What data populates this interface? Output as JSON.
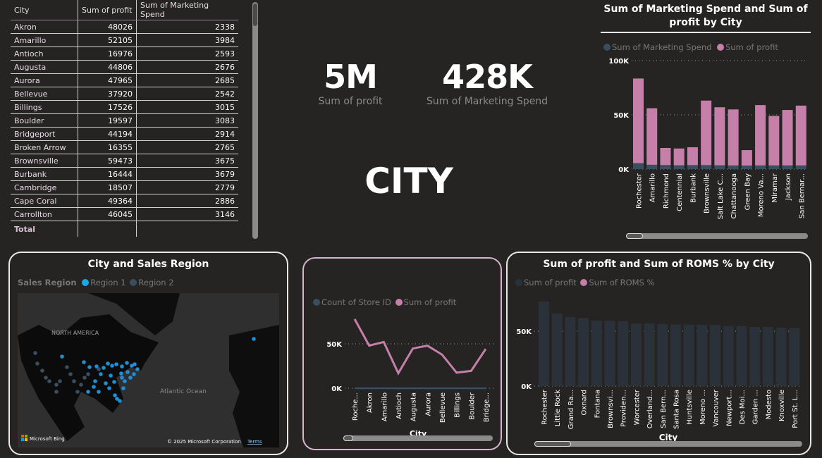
{
  "table": {
    "headers": [
      "City",
      "Sum of profit",
      "Sum of Marketing Spend"
    ],
    "rows": [
      [
        "Akron",
        "48026",
        "2338"
      ],
      [
        "Amarillo",
        "52105",
        "3984"
      ],
      [
        "Antioch",
        "16976",
        "2593"
      ],
      [
        "Augusta",
        "44806",
        "2676"
      ],
      [
        "Aurora",
        "47965",
        "2685"
      ],
      [
        "Bellevue",
        "37920",
        "2542"
      ],
      [
        "Billings",
        "17526",
        "3015"
      ],
      [
        "Boulder",
        "19597",
        "3083"
      ],
      [
        "Bridgeport",
        "44194",
        "2914"
      ],
      [
        "Broken Arrow",
        "16355",
        "2765"
      ],
      [
        "Brownsville",
        "59473",
        "3675"
      ],
      [
        "Burbank",
        "16444",
        "3679"
      ],
      [
        "Cambridge",
        "18507",
        "2779"
      ],
      [
        "Cape Coral",
        "49364",
        "2886"
      ],
      [
        "Carrollton",
        "46045",
        "3146"
      ]
    ],
    "total_label": "Total"
  },
  "kpis": [
    {
      "value": "5M",
      "label": "Sum of profit"
    },
    {
      "value": "428K",
      "label": "Sum of Marketing Spend"
    }
  ],
  "city_heading": "CITY",
  "colors": {
    "background": "#252423",
    "profit": "#c57fa8",
    "marketing": "#3a4e5e",
    "region1": "#1ea7e6",
    "region2": "#3a4e5e",
    "roms_bar": "#2b3138"
  },
  "chart_data": [
    {
      "type": "bar",
      "stacked": true,
      "title": "Sum of Marketing Spend and Sum of profit by City",
      "legend_position": "top-left",
      "ylim": [
        0,
        100000
      ],
      "yticks": [
        "0K",
        "50K",
        "100K"
      ],
      "grid": true,
      "categories": [
        "Rochester",
        "Amarillo",
        "Richmond",
        "Centennial",
        "Burbank",
        "Brownsville",
        "Salt Lake C...",
        "Chattanooga",
        "Green Bay",
        "Moreno Va...",
        "Miramar",
        "Jackson",
        "San Bernar..."
      ],
      "series": [
        {
          "name": "Sum of Marketing Spend",
          "values": [
            5500,
            3984,
            3700,
            3500,
            3679,
            3675,
            3500,
            3400,
            3300,
            3400,
            3400,
            3400,
            3400
          ]
        },
        {
          "name": "Sum of profit",
          "values": [
            78000,
            52105,
            15800,
            15500,
            16444,
            59473,
            53500,
            51600,
            14200,
            55600,
            45600,
            51100,
            55100
          ]
        }
      ]
    },
    {
      "type": "line",
      "xlabel": "City",
      "legend_position": "top-left",
      "ylim": [
        0,
        90000
      ],
      "yticks": [
        "0K",
        "50K"
      ],
      "grid": true,
      "categories": [
        "Roche...",
        "Akron",
        "Amarillo",
        "Antioch",
        "Augusta",
        "Aurora",
        "Bellevue",
        "Billings",
        "Boulder",
        "Bridge..."
      ],
      "series": [
        {
          "name": "Count of Store ID",
          "values": [
            1,
            1,
            1,
            1,
            1,
            1,
            1,
            1,
            1,
            1
          ]
        },
        {
          "name": "Sum of profit",
          "values": [
            78000,
            48026,
            52105,
            16976,
            44806,
            47965,
            37920,
            17526,
            19597,
            44194
          ]
        }
      ]
    },
    {
      "type": "bar",
      "title": "Sum of profit and Sum of ROMS % by City",
      "xlabel": "City",
      "legend_position": "top-left",
      "ylim": [
        0,
        90000
      ],
      "yticks": [
        "0K",
        "50K"
      ],
      "grid": true,
      "legend": [
        "Sum of profit",
        "Sum of ROMS %"
      ],
      "categories": [
        "Rochester",
        "Little Rock",
        "Grand Ra...",
        "Oxnard",
        "Fontana",
        "Brownsvi...",
        "Providen...",
        "Worcester",
        "Overland...",
        "San Bern...",
        "Santa Rosa",
        "Huntsville",
        "Moreno ...",
        "Vancouver",
        "Newport...",
        "Des Moi...",
        "Garden ...",
        "Modesto",
        "Knoxville",
        "Port St. L..."
      ],
      "series": [
        {
          "name": "Sum of profit",
          "values": [
            77000,
            66000,
            62800,
            62000,
            59600,
            59500,
            59000,
            57000,
            57000,
            56400,
            56000,
            56000,
            55800,
            55500,
            54600,
            54500,
            54000,
            53800,
            53200,
            53000
          ]
        }
      ]
    }
  ],
  "map": {
    "title": "City and Sales Region",
    "legend_title": "Sales Region",
    "legend": [
      "Region 1",
      "Region 2"
    ],
    "labels": [
      "NORTH AMERICA",
      "Atlantic Ocean"
    ],
    "brand": "Microsoft Bing",
    "copyright": "© 2025 Microsoft Corporation",
    "terms": "Terms"
  }
}
